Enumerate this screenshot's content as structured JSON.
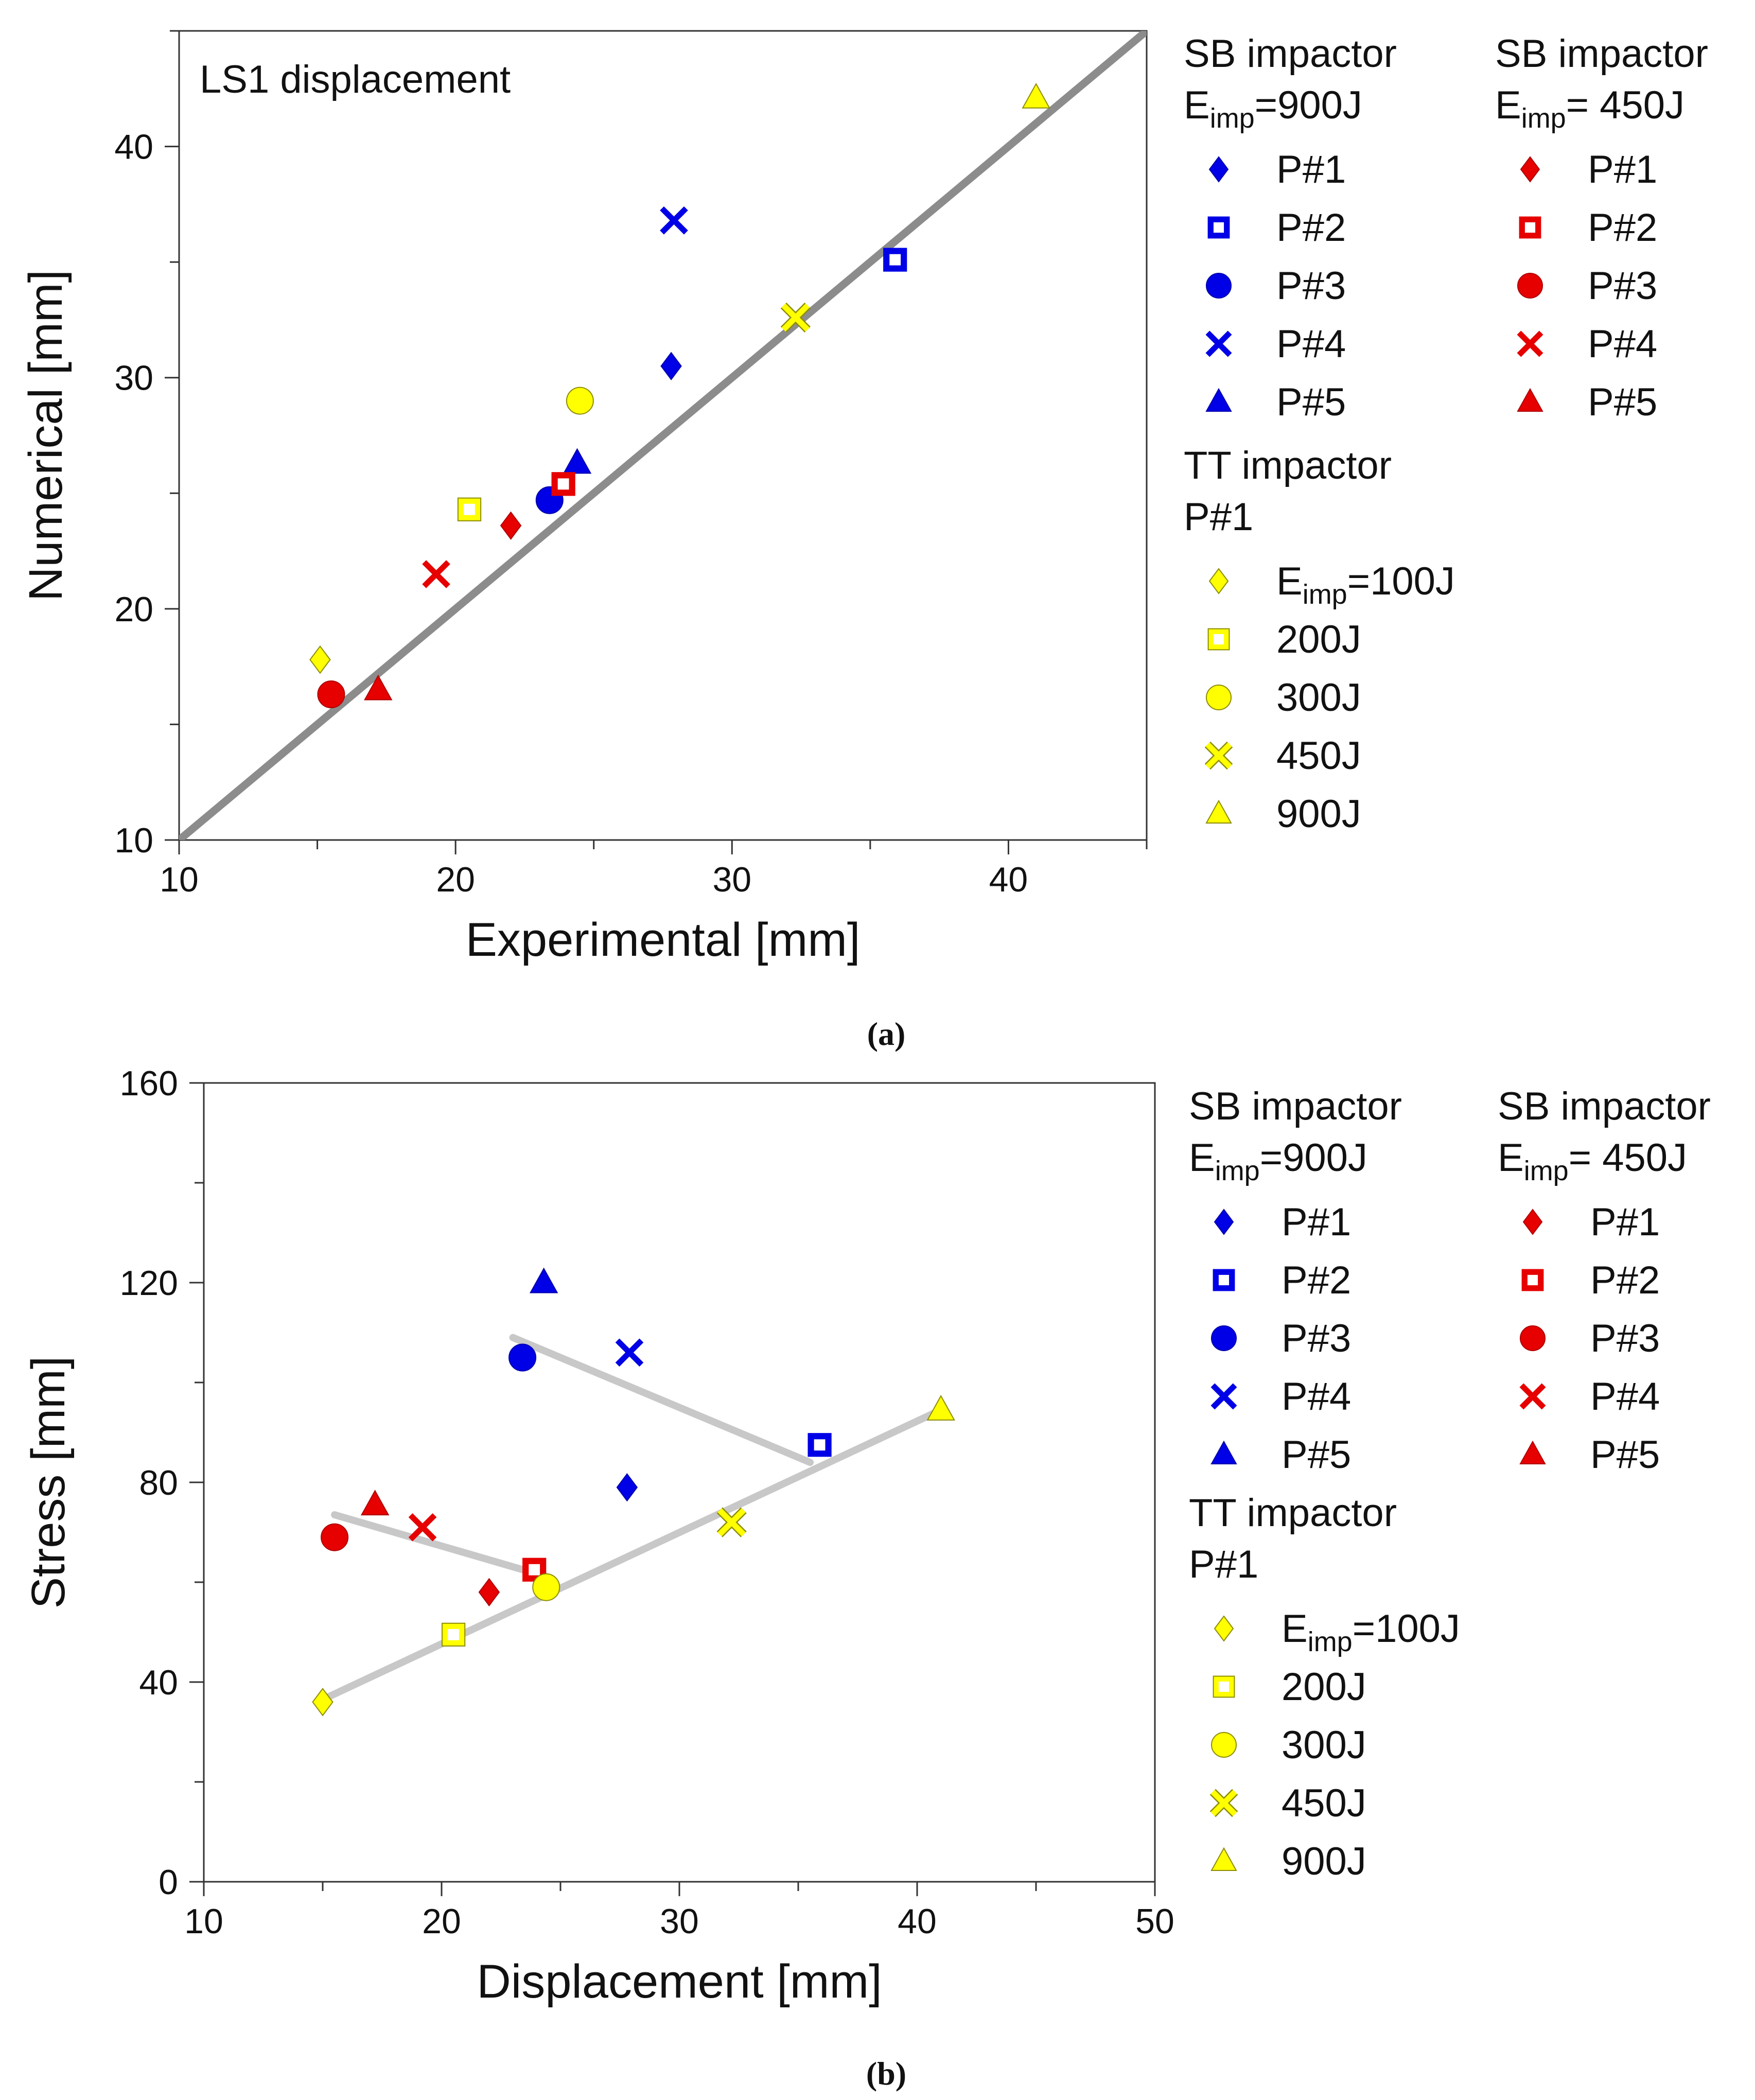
{
  "chart_data": [
    {
      "type": "scatter",
      "panel": "a",
      "caption": "(a)",
      "title": "LS1 displacement",
      "xlabel": "Experimental [mm]",
      "ylabel": "Numerical  [mm]",
      "xlim": [
        10,
        45
      ],
      "ylim": [
        10,
        45
      ],
      "xticks": [
        10,
        20,
        30,
        40
      ],
      "yticks": [
        10,
        20,
        30,
        40
      ],
      "reference_line": {
        "color": "#8c8c8c",
        "points": [
          [
            10,
            10
          ],
          [
            45,
            45
          ]
        ]
      },
      "legend_groups": [
        {
          "title": [
            "SB impactor",
            "E_imp=900J"
          ],
          "items": [
            "P#1",
            "P#2",
            "P#3",
            "P#4",
            "P#5"
          ]
        },
        {
          "title": [
            "SB impactor",
            "E_imp= 450J"
          ],
          "items": [
            "P#1",
            "P#2",
            "P#3",
            "P#4",
            "P#5"
          ]
        },
        {
          "title": [
            "TT impactor",
            "P#1"
          ],
          "items": [
            "E_imp=100J",
            "200J",
            "300J",
            "450J",
            "900J"
          ]
        }
      ],
      "series": [
        {
          "name": "SB 900J P#1",
          "marker": "diamond",
          "color": "#0000e6",
          "x": 27.8,
          "y": 30.5
        },
        {
          "name": "SB 900J P#2",
          "marker": "square",
          "color": "#0000e6",
          "x": 35.9,
          "y": 35.1
        },
        {
          "name": "SB 900J P#3",
          "marker": "circle",
          "color": "#0000e6",
          "x": 23.4,
          "y": 24.7
        },
        {
          "name": "SB 900J P#4",
          "marker": "x",
          "color": "#0000e6",
          "x": 27.9,
          "y": 36.8
        },
        {
          "name": "SB 900J P#5",
          "marker": "triangle",
          "color": "#0000e6",
          "x": 24.4,
          "y": 26.3
        },
        {
          "name": "SB 450J P#1",
          "marker": "diamond",
          "color": "#e60000",
          "x": 22.0,
          "y": 23.6
        },
        {
          "name": "SB 450J P#2",
          "marker": "square",
          "color": "#e60000",
          "x": 23.9,
          "y": 25.4
        },
        {
          "name": "SB 450J P#3",
          "marker": "circle",
          "color": "#e60000",
          "x": 15.5,
          "y": 16.3
        },
        {
          "name": "SB 450J P#4",
          "marker": "x",
          "color": "#e60000",
          "x": 19.3,
          "y": 21.5
        },
        {
          "name": "SB 450J P#5",
          "marker": "triangle",
          "color": "#e60000",
          "x": 17.2,
          "y": 16.5
        },
        {
          "name": "TT 100J",
          "marker": "diamond",
          "color": "#ffff00",
          "x": 15.1,
          "y": 17.8
        },
        {
          "name": "TT 200J",
          "marker": "square",
          "color": "#ffff00",
          "x": 20.5,
          "y": 24.3
        },
        {
          "name": "TT 300J",
          "marker": "circle",
          "color": "#ffff00",
          "x": 24.5,
          "y": 29.0
        },
        {
          "name": "TT 450J",
          "marker": "x",
          "color": "#ffff00",
          "x": 32.3,
          "y": 32.6
        },
        {
          "name": "TT 900J",
          "marker": "triangle",
          "color": "#ffff00",
          "x": 41.0,
          "y": 42.1
        }
      ]
    },
    {
      "type": "scatter",
      "panel": "b",
      "caption": "(b)",
      "xlabel": "Displacement [mm]",
      "ylabel": "Stress  [mm]",
      "xlim": [
        10,
        50
      ],
      "ylim": [
        0,
        160
      ],
      "xticks": [
        10,
        20,
        30,
        40,
        50
      ],
      "yticks": [
        0,
        40,
        80,
        120,
        160
      ],
      "trend_lines": [
        {
          "color": "#c8c8c8",
          "points": [
            [
              23.0,
              109.0
            ],
            [
              35.5,
              84.0
            ]
          ]
        },
        {
          "color": "#c8c8c8",
          "points": [
            [
              15.5,
              73.5
            ],
            [
              24.5,
              61.0
            ]
          ]
        },
        {
          "color": "#c8c8c8",
          "points": [
            [
              15.0,
              36.5
            ],
            [
              41.0,
              94.5
            ]
          ]
        }
      ],
      "legend_groups": [
        {
          "title": [
            "SB impactor",
            "E_imp=900J"
          ],
          "items": [
            "P#1",
            "P#2",
            "P#3",
            "P#4",
            "P#5"
          ]
        },
        {
          "title": [
            "SB impactor",
            "E_imp= 450J"
          ],
          "items": [
            "P#1",
            "P#2",
            "P#3",
            "P#4",
            "P#5"
          ]
        },
        {
          "title": [
            "TT impactor",
            "P#1"
          ],
          "items": [
            "E_imp=100J",
            "200J",
            "300J",
            "450J",
            "900J"
          ]
        }
      ],
      "series": [
        {
          "name": "SB 900J P#1",
          "marker": "diamond",
          "color": "#0000e6",
          "x": 27.8,
          "y": 79
        },
        {
          "name": "SB 900J P#2",
          "marker": "square",
          "color": "#0000e6",
          "x": 35.9,
          "y": 87.5
        },
        {
          "name": "SB 900J P#3",
          "marker": "circle",
          "color": "#0000e6",
          "x": 23.4,
          "y": 105
        },
        {
          "name": "SB 900J P#4",
          "marker": "x",
          "color": "#0000e6",
          "x": 27.9,
          "y": 106
        },
        {
          "name": "SB 900J P#5",
          "marker": "triangle",
          "color": "#0000e6",
          "x": 24.3,
          "y": 120
        },
        {
          "name": "SB 450J P#1",
          "marker": "diamond",
          "color": "#e60000",
          "x": 22.0,
          "y": 58
        },
        {
          "name": "SB 450J P#2",
          "marker": "square",
          "color": "#e60000",
          "x": 23.9,
          "y": 62.5
        },
        {
          "name": "SB 450J P#3",
          "marker": "circle",
          "color": "#e60000",
          "x": 15.5,
          "y": 69
        },
        {
          "name": "SB 450J P#4",
          "marker": "x",
          "color": "#e60000",
          "x": 19.2,
          "y": 71
        },
        {
          "name": "SB 450J P#5",
          "marker": "triangle",
          "color": "#e60000",
          "x": 17.2,
          "y": 75.5
        },
        {
          "name": "TT 100J",
          "marker": "diamond",
          "color": "#ffff00",
          "x": 15.0,
          "y": 36
        },
        {
          "name": "TT 200J",
          "marker": "square",
          "color": "#ffff00",
          "x": 20.5,
          "y": 49.5
        },
        {
          "name": "TT 300J",
          "marker": "circle",
          "color": "#ffff00",
          "x": 24.4,
          "y": 59
        },
        {
          "name": "TT 450J",
          "marker": "x",
          "color": "#ffff00",
          "x": 32.2,
          "y": 72
        },
        {
          "name": "TT 900J",
          "marker": "triangle",
          "color": "#ffff00",
          "x": 41.0,
          "y": 94.5
        }
      ]
    }
  ]
}
